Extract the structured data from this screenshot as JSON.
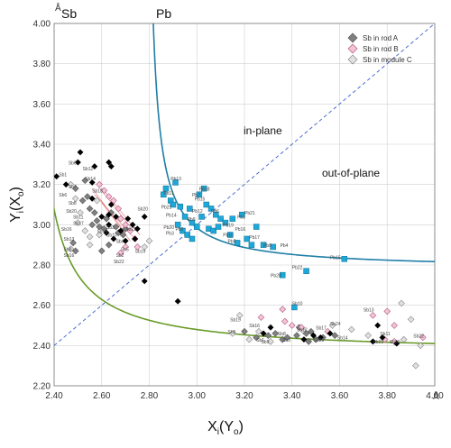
{
  "chart_data": {
    "type": "scatter",
    "xlabel_main": "X",
    "xlabel_sub1": "i",
    "xlabel_paren": "Y",
    "xlabel_sub2": "o",
    "ylabel_main": "Y",
    "ylabel_sub1": "i",
    "ylabel_paren": "X",
    "ylabel_sub2": "o",
    "x_unit": "Å",
    "y_unit": "Å",
    "xlim": [
      2.4,
      4.0
    ],
    "ylim": [
      2.2,
      4.0
    ],
    "x_ticks": [
      "2.40",
      "2.60",
      "2.80",
      "3.00",
      "3.20",
      "3.40",
      "3.60",
      "3.80",
      "4.00"
    ],
    "y_ticks": [
      "2.20",
      "2.40",
      "2.60",
      "2.80",
      "3.00",
      "3.20",
      "3.40",
      "3.60",
      "3.80",
      "4.00"
    ],
    "grid": "vertical and horizontal lines at each tick",
    "curves": [
      {
        "label": "Sb",
        "color": "#6a9a2a",
        "asymptote_x": 2.28,
        "asymptote_y": 2.36,
        "k": 0.086
      },
      {
        "label": "Pb",
        "color": "#1f7ea6",
        "asymptote_x": 2.78,
        "asymptote_y": 2.78,
        "k": 0.045
      }
    ],
    "diagonal": {
      "from": [
        2.4,
        2.4
      ],
      "to": [
        4.0,
        4.0
      ],
      "color": "#3a5fcd"
    },
    "regions": {
      "in_plane": "in-plane",
      "out_of_plane": "out-of-plane"
    },
    "legend": {
      "position": "top-right",
      "entries": [
        {
          "name": "Sb in rod A",
          "marker": "diamond",
          "fill": "#808080",
          "stroke": "#555555"
        },
        {
          "name": "Sb in rod B",
          "marker": "diamond",
          "fill": "#f4c3d6",
          "stroke": "#b05a80"
        },
        {
          "name": "Sb in module C",
          "marker": "diamond",
          "fill": "#e0e0e0",
          "stroke": "#888888"
        }
      ]
    },
    "colors": {
      "black_marker": "#000000",
      "pb_marker": "#1ea8d8",
      "red_line": "#e05050"
    },
    "black_diamonds": [
      [
        2.41,
        3.24
      ],
      [
        2.45,
        3.2
      ],
      [
        2.51,
        3.36
      ],
      [
        2.5,
        3.31
      ],
      [
        2.56,
        3.21
      ],
      [
        2.63,
        3.31
      ],
      [
        2.64,
        3.29
      ],
      [
        2.57,
        3.29
      ],
      [
        2.56,
        3.13
      ],
      [
        2.6,
        3.04
      ],
      [
        2.63,
        3.05
      ],
      [
        2.66,
        3.04
      ],
      [
        2.68,
        2.97
      ],
      [
        2.63,
        3.0
      ],
      [
        2.62,
        2.96
      ],
      [
        2.65,
        2.93
      ],
      [
        2.7,
        2.92
      ],
      [
        2.71,
        3.03
      ],
      [
        2.73,
        3.0
      ],
      [
        2.75,
        2.98
      ],
      [
        2.78,
        3.04
      ],
      [
        2.74,
        2.93
      ],
      [
        2.64,
        3.1
      ],
      [
        2.92,
        2.62
      ],
      [
        3.28,
        2.46
      ],
      [
        3.31,
        2.49
      ],
      [
        3.49,
        2.45
      ],
      [
        3.56,
        2.46
      ],
      [
        3.74,
        2.42
      ],
      [
        3.76,
        2.5
      ],
      [
        3.78,
        2.44
      ],
      [
        3.84,
        2.41
      ],
      [
        3.45,
        2.43
      ],
      [
        3.52,
        2.44
      ],
      [
        2.78,
        2.72
      ]
    ],
    "grey_diamonds": [
      [
        2.49,
        3.18
      ],
      [
        2.53,
        3.22
      ],
      [
        2.55,
        3.08
      ],
      [
        2.57,
        3.06
      ],
      [
        2.58,
        3.02
      ],
      [
        2.59,
        2.99
      ],
      [
        2.61,
        2.98
      ],
      [
        2.62,
        3.03
      ],
      [
        2.64,
        3.06
      ],
      [
        2.66,
        2.99
      ],
      [
        2.67,
        2.96
      ],
      [
        2.69,
        2.95
      ],
      [
        2.7,
        2.98
      ],
      [
        2.52,
        3.12
      ],
      [
        2.54,
        3.14
      ],
      [
        2.56,
        3.0
      ],
      [
        2.48,
        2.91
      ],
      [
        2.49,
        2.87
      ],
      [
        2.6,
        2.87
      ],
      [
        2.63,
        2.9
      ],
      [
        3.2,
        2.47
      ],
      [
        3.25,
        2.44
      ],
      [
        3.3,
        2.45
      ],
      [
        3.33,
        2.46
      ],
      [
        3.38,
        2.44
      ],
      [
        3.42,
        2.45
      ],
      [
        3.46,
        2.46
      ],
      [
        3.47,
        2.42
      ],
      [
        3.5,
        2.43
      ],
      [
        3.53,
        2.44
      ],
      [
        3.58,
        2.45
      ],
      [
        3.43,
        2.49
      ],
      [
        3.36,
        2.43
      ],
      [
        3.48,
        2.47
      ]
    ],
    "pink_diamonds": [
      [
        2.59,
        3.2
      ],
      [
        2.63,
        3.14
      ],
      [
        2.65,
        3.12
      ],
      [
        2.67,
        3.08
      ],
      [
        2.68,
        3.03
      ],
      [
        2.7,
        3.0
      ],
      [
        2.72,
        2.97
      ],
      [
        2.74,
        2.93
      ],
      [
        2.68,
        2.86
      ],
      [
        2.7,
        2.89
      ],
      [
        2.75,
        2.89
      ],
      [
        2.61,
        3.17
      ],
      [
        3.27,
        2.54
      ],
      [
        3.36,
        2.58
      ],
      [
        3.37,
        2.52
      ],
      [
        3.44,
        2.49
      ],
      [
        3.4,
        2.5
      ],
      [
        3.79,
        2.43
      ],
      [
        3.83,
        2.5
      ],
      [
        3.8,
        2.57
      ],
      [
        3.74,
        2.55
      ],
      [
        3.83,
        2.42
      ],
      [
        3.95,
        2.44
      ],
      [
        3.55,
        2.47
      ]
    ],
    "light_diamonds": [
      [
        2.47,
        3.2
      ],
      [
        2.49,
        3.13
      ],
      [
        2.51,
        3.06
      ],
      [
        2.53,
        2.97
      ],
      [
        2.55,
        2.94
      ],
      [
        2.59,
        2.95
      ],
      [
        2.58,
        3.12
      ],
      [
        2.5,
        3.01
      ],
      [
        2.47,
        2.88
      ],
      [
        2.55,
        2.9
      ],
      [
        2.78,
        2.89
      ],
      [
        2.8,
        2.92
      ],
      [
        3.15,
        2.46
      ],
      [
        3.22,
        2.43
      ],
      [
        3.26,
        2.47
      ],
      [
        3.31,
        2.42
      ],
      [
        3.45,
        2.47
      ],
      [
        3.57,
        2.5
      ],
      [
        3.65,
        2.48
      ],
      [
        3.72,
        2.45
      ],
      [
        3.86,
        2.61
      ],
      [
        3.9,
        2.53
      ],
      [
        3.92,
        2.3
      ],
      [
        3.94,
        2.4
      ],
      [
        3.87,
        2.43
      ],
      [
        3.18,
        2.55
      ]
    ],
    "pb_squares": [
      [
        2.87,
        3.18
      ],
      [
        2.89,
        3.12
      ],
      [
        2.91,
        3.21
      ],
      [
        2.93,
        3.09
      ],
      [
        2.95,
        3.04
      ],
      [
        2.97,
        3.08
      ],
      [
        2.98,
        3.01
      ],
      [
        3.0,
        2.99
      ],
      [
        3.02,
        3.04
      ],
      [
        3.04,
        3.1
      ],
      [
        3.06,
        3.08
      ],
      [
        3.08,
        3.05
      ],
      [
        3.1,
        3.03
      ],
      [
        3.12,
        3.01
      ],
      [
        3.01,
        3.15
      ],
      [
        3.03,
        3.18
      ],
      [
        2.94,
        2.97
      ],
      [
        2.96,
        2.95
      ],
      [
        2.98,
        2.93
      ],
      [
        3.0,
        2.99
      ],
      [
        3.05,
        2.98
      ],
      [
        3.07,
        2.97
      ],
      [
        3.15,
        3.03
      ],
      [
        3.19,
        3.05
      ],
      [
        3.14,
        2.95
      ],
      [
        3.17,
        2.91
      ],
      [
        3.21,
        2.93
      ],
      [
        3.23,
        2.9
      ],
      [
        3.25,
        2.99
      ],
      [
        3.28,
        2.9
      ],
      [
        3.32,
        2.89
      ],
      [
        3.46,
        2.77
      ],
      [
        3.62,
        2.83
      ],
      [
        3.36,
        2.75
      ],
      [
        3.41,
        2.59
      ],
      [
        2.86,
        3.15
      ],
      [
        2.9,
        3.1
      ],
      [
        2.92,
        3.0
      ],
      [
        3.09,
        2.99
      ]
    ],
    "pt_labels": [
      [
        "Sb1",
        2.42,
        3.24
      ],
      [
        "Sb12",
        2.52,
        3.27
      ],
      [
        "Sb6",
        2.46,
        3.3
      ],
      [
        "Sb14",
        2.53,
        3.22
      ],
      [
        "Sb7",
        2.46,
        3.18
      ],
      [
        "Sb18",
        2.56,
        3.16
      ],
      [
        "Sb6",
        2.42,
        3.14
      ],
      [
        "Sb8",
        2.46,
        3.1
      ],
      [
        "Sb20",
        2.45,
        3.06
      ],
      [
        "Sb11",
        2.48,
        3.03
      ],
      [
        "Sb17",
        2.48,
        3.0
      ],
      [
        "Sb16",
        2.43,
        2.97
      ],
      [
        "Sb13",
        2.44,
        2.92
      ],
      [
        "Sb15",
        2.58,
        2.96
      ],
      [
        "Sb8",
        2.44,
        2.87
      ],
      [
        "Sb16",
        2.44,
        2.84
      ],
      [
        "Sb3",
        2.62,
        2.98
      ],
      [
        "Sb21",
        2.7,
        2.97
      ],
      [
        "Sb4",
        2.66,
        2.91
      ],
      [
        "Sb5",
        2.68,
        2.87
      ],
      [
        "Sb2",
        2.66,
        2.84
      ],
      [
        "Sb22",
        2.65,
        2.81
      ],
      [
        "Sb10",
        2.62,
        2.94
      ],
      [
        "Sb19",
        2.74,
        2.86
      ],
      [
        "Sb20",
        2.75,
        3.07
      ],
      [
        "Pb13",
        2.89,
        3.22
      ],
      [
        "Pb11",
        2.86,
        3.15
      ],
      [
        "Pb7",
        2.98,
        3.14
      ],
      [
        "Pb18",
        3.01,
        3.17
      ],
      [
        "Pb15",
        2.99,
        3.12
      ],
      [
        "Pb22",
        2.85,
        3.08
      ],
      [
        "Pb12",
        2.98,
        3.06
      ],
      [
        "Pb9",
        2.96,
        3.02
      ],
      [
        "Pb14",
        2.87,
        3.04
      ],
      [
        "Pb20",
        2.86,
        2.98
      ],
      [
        "Pb3",
        2.87,
        2.95
      ],
      [
        "Pb6",
        3.06,
        3.06
      ],
      [
        "Pb19",
        3.11,
        2.99
      ],
      [
        "Pb1",
        3.17,
        3.03
      ],
      [
        "Pb16",
        3.16,
        2.97
      ],
      [
        "Pb10",
        3.11,
        2.94
      ],
      [
        "Pb5",
        3.13,
        2.91
      ],
      [
        "Pb8",
        3.28,
        2.89
      ],
      [
        "Pb17",
        3.22,
        2.93
      ],
      [
        "Pb4",
        3.35,
        2.89
      ],
      [
        "Pb21",
        3.2,
        3.05
      ],
      [
        "Pb15",
        3.56,
        2.83
      ],
      [
        "Pb22",
        3.4,
        2.78
      ],
      [
        "Pb20",
        3.31,
        2.74
      ],
      [
        "Pb2",
        2.91,
        2.97
      ],
      [
        "Sb16",
        3.22,
        2.49
      ],
      [
        "Sb19",
        3.14,
        2.52
      ],
      [
        "Sb5",
        3.13,
        2.46
      ],
      [
        "Sb1",
        3.25,
        2.42
      ],
      [
        "Sb8",
        3.34,
        2.45
      ],
      [
        "Sb10",
        3.4,
        2.6
      ],
      [
        "Sb17",
        3.5,
        2.48
      ],
      [
        "Sb24",
        3.56,
        2.5
      ],
      [
        "Sb14",
        3.59,
        2.43
      ],
      [
        "Sb23",
        3.49,
        2.42
      ],
      [
        "Sb13",
        3.7,
        2.57
      ],
      [
        "Sb11",
        3.77,
        2.45
      ],
      [
        "Sb20",
        3.81,
        2.41
      ],
      [
        "Sb22",
        3.91,
        2.44
      ],
      [
        "Sb21",
        3.74,
        2.41
      ],
      [
        "Sb12",
        3.42,
        2.47
      ],
      [
        "Sb9",
        3.27,
        2.41
      ],
      [
        "Sb3",
        3.36,
        2.42
      ]
    ]
  }
}
